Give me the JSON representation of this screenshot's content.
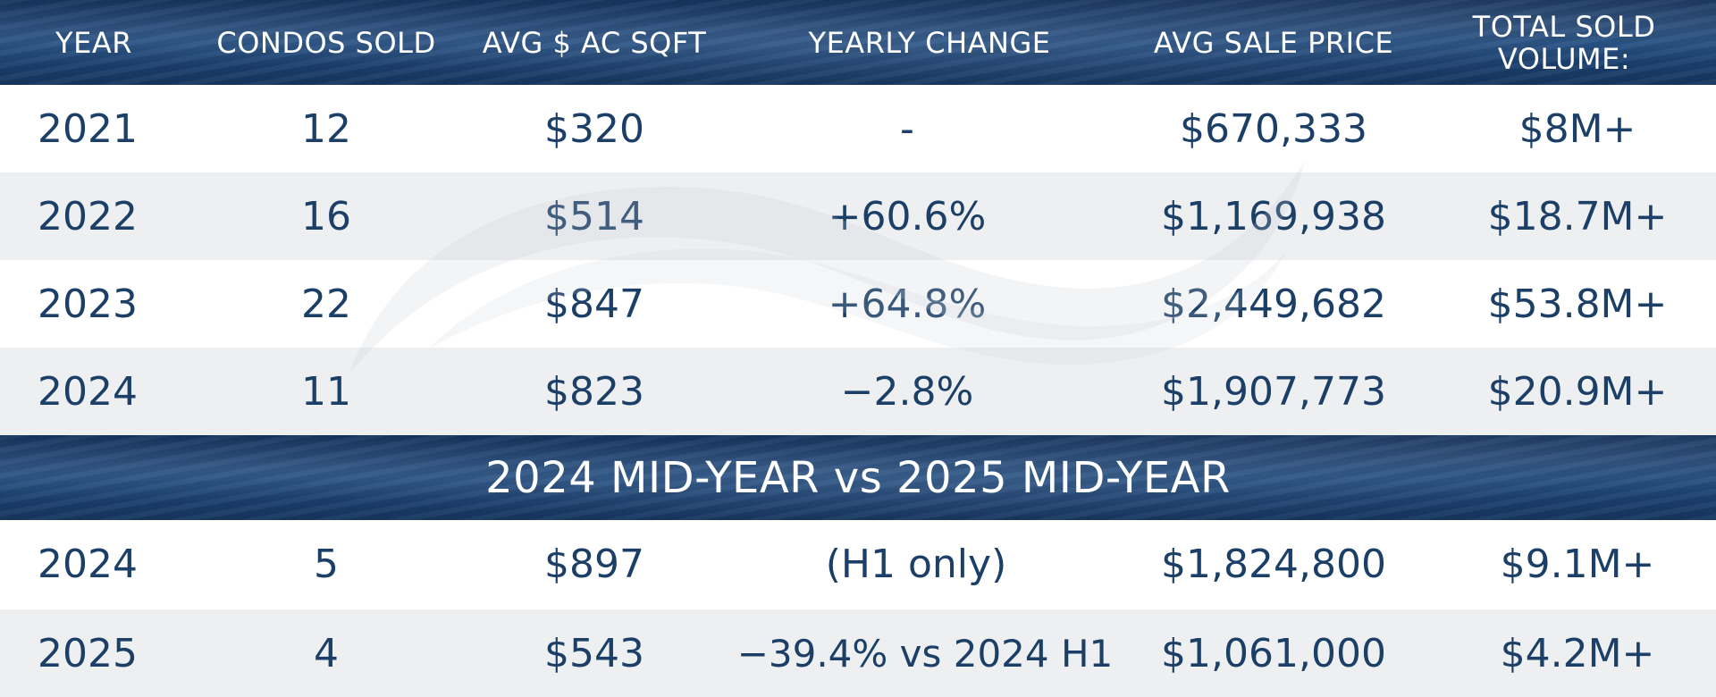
{
  "header": {
    "year": "YEAR",
    "condos_sold": "CONDOS SOLD",
    "avg_sqft": "AVG $ AC SQFT",
    "yearly_change": "YEARLY CHANGE",
    "avg_sale_price": "AVG SALE PRICE",
    "total_volume": "TOTAL SOLD\nVOLUME:"
  },
  "annual_rows": [
    {
      "year": "2021",
      "condos": "12",
      "sqft": "$320",
      "change": "-",
      "price": "$670,333",
      "volume": "$8M+"
    },
    {
      "year": "2022",
      "condos": "16",
      "sqft": "$514",
      "change": "+60.6%",
      "price": "$1,169,938",
      "volume": "$18.7M+"
    },
    {
      "year": "2023",
      "condos": "22",
      "sqft": "$847",
      "change": "+64.8%",
      "price": "$2,449,682",
      "volume": "$53.8M+"
    },
    {
      "year": "2024",
      "condos": "11",
      "sqft": "$823",
      "change": "−2.8%",
      "price": "$1,907,773",
      "volume": "$20.9M+"
    }
  ],
  "band": {
    "title": "2024 MID-YEAR vs 2025 MID-YEAR"
  },
  "midyear_rows": [
    {
      "year": "2024",
      "condos": "5",
      "sqft": "$897",
      "change": "(H1 only)",
      "price": "$1,824,800",
      "volume": "$9.1M+"
    },
    {
      "year": "2025",
      "condos": "4",
      "sqft": "$543",
      "change": "−39.4% vs 2024 H1",
      "price": "$1,061,000",
      "volume": "$4.2M+"
    }
  ],
  "colors": {
    "navy": "#1b3f66",
    "ocean": "#1f4a7e",
    "row_gray": "#eeeff1"
  }
}
